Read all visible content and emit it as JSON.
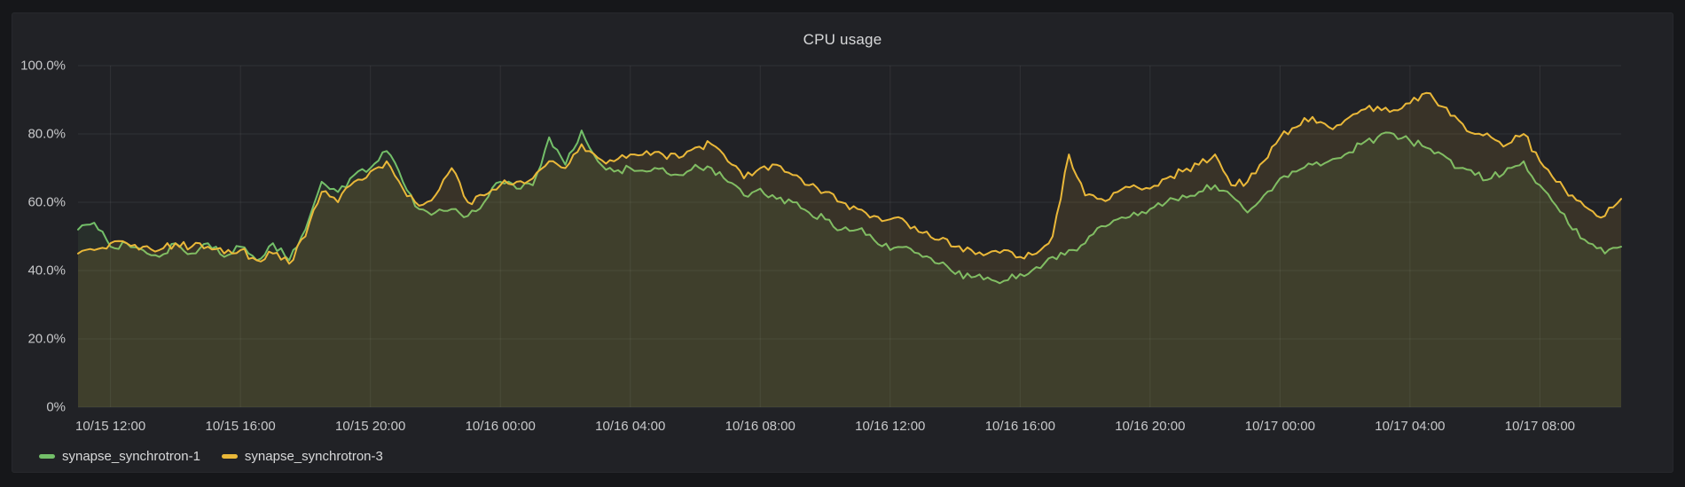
{
  "panel": {
    "title": "CPU usage"
  },
  "colors": {
    "page_bg": "#16171A",
    "panel_bg": "#212226",
    "grid": "rgba(255,255,255,0.07)",
    "axis_text": "#C7C8CA",
    "title_text": "#D8D9DA",
    "series_green": "#73BF69",
    "series_yellow": "#EAB839"
  },
  "chart_data": {
    "type": "line",
    "title": "CPU usage",
    "xlabel": "",
    "ylabel": "",
    "y_unit": "%",
    "ylim": [
      0,
      100
    ],
    "grid": true,
    "legend_position": "bottom-left",
    "x_start": "10/15 11:00",
    "x_step_minutes": 30,
    "x_tick_labels": [
      "10/15 12:00",
      "10/15 16:00",
      "10/15 20:00",
      "10/16 00:00",
      "10/16 04:00",
      "10/16 08:00",
      "10/16 12:00",
      "10/16 16:00",
      "10/16 20:00",
      "10/17 00:00",
      "10/17 04:00",
      "10/17 08:00"
    ],
    "x_first_tick_index": 2,
    "x_tick_index_step": 8,
    "y_tick_labels": [
      "0%",
      "20.0%",
      "40.0%",
      "60.0%",
      "80.0%",
      "100.0%"
    ],
    "series": [
      {
        "name": "synapse_synchrotron-1",
        "color": "#73BF69",
        "fill_opacity": 0.09,
        "values": [
          52,
          54,
          47,
          48,
          46,
          44,
          48,
          45,
          48,
          44,
          47,
          43,
          48,
          43,
          52,
          66,
          63,
          68,
          70,
          75,
          66,
          58,
          57,
          58,
          56,
          60,
          66,
          64,
          65,
          79,
          71,
          81,
          72,
          69,
          70,
          69,
          70,
          68,
          71,
          70,
          66,
          62,
          64,
          61,
          60,
          57,
          55,
          52,
          52,
          49,
          46,
          47,
          44,
          42,
          39,
          38,
          38,
          37,
          39,
          41,
          44,
          46,
          48,
          53,
          55,
          57,
          58,
          60,
          62,
          63,
          65,
          62,
          57,
          62,
          67,
          69,
          71,
          72,
          74,
          77,
          79,
          80,
          78,
          76,
          74,
          70,
          68,
          67,
          70,
          72,
          65,
          59,
          52,
          48,
          45,
          47
        ]
      },
      {
        "name": "synapse_synchrotron-3",
        "color": "#EAB839",
        "fill_opacity": 0.12,
        "values": [
          45,
          46,
          48,
          48,
          47,
          46,
          48,
          47,
          47,
          45,
          46,
          43,
          45,
          42,
          50,
          63,
          60,
          66,
          69,
          72,
          64,
          59,
          62,
          70,
          60,
          62,
          65,
          66,
          67,
          72,
          70,
          77,
          73,
          72,
          74,
          75,
          74,
          73,
          76,
          77,
          72,
          67,
          70,
          71,
          68,
          65,
          63,
          60,
          58,
          56,
          55,
          54,
          51,
          49,
          47,
          46,
          45,
          46,
          44,
          45,
          50,
          74,
          62,
          61,
          63,
          65,
          64,
          67,
          69,
          71,
          74,
          65,
          66,
          72,
          79,
          82,
          85,
          82,
          84,
          87,
          88,
          87,
          89,
          92,
          88,
          84,
          80,
          79,
          77,
          80,
          72,
          66,
          62,
          58,
          56,
          61
        ]
      }
    ]
  }
}
